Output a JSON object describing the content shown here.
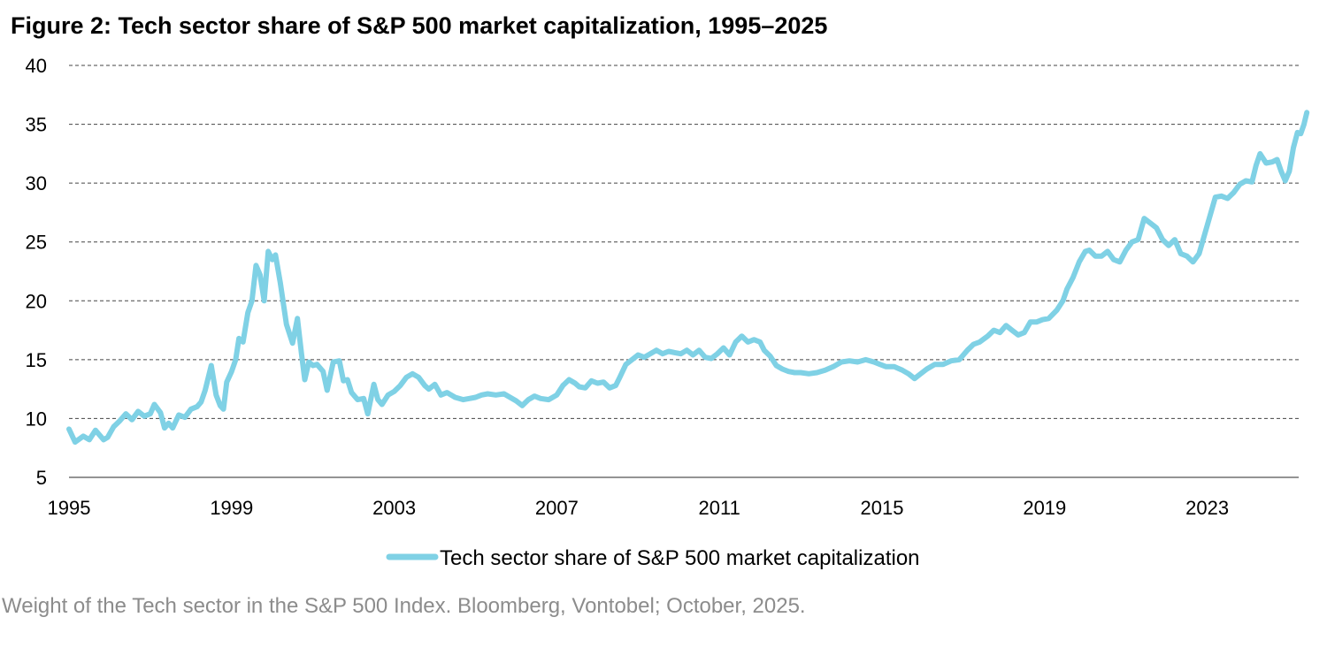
{
  "figure_title": "Figure 2: Tech sector share of S&P 500 market capitalization, 1995–2025",
  "caption": "Weight of the Tech sector in the S&P 500 Index. Bloomberg, Vontobel; October, 2025.",
  "chart_data": {
    "type": "line",
    "title": "Figure 2: Tech sector share of S&P 500 market capitalization, 1995–2025",
    "xlabel": "",
    "ylabel": "",
    "xlim": [
      1995.0,
      2025.25
    ],
    "ylim": [
      5,
      40
    ],
    "x_ticks": [
      1995,
      1999,
      2003,
      2007,
      2011,
      2015,
      2019,
      2023
    ],
    "y_ticks": [
      5,
      10,
      15,
      20,
      25,
      30,
      35,
      40
    ],
    "grid": "horizontal dashed",
    "legend_position": "bottom-center",
    "series": [
      {
        "name": "Tech sector share of S&P 500 market capitalization",
        "color": "#7fd1e5",
        "points": [
          [
            1995.0,
            9.1
          ],
          [
            1995.15,
            8.0
          ],
          [
            1995.35,
            8.5
          ],
          [
            1995.5,
            8.2
          ],
          [
            1995.65,
            9.0
          ],
          [
            1995.85,
            8.2
          ],
          [
            1995.95,
            8.4
          ],
          [
            1996.1,
            9.3
          ],
          [
            1996.25,
            9.8
          ],
          [
            1996.4,
            10.4
          ],
          [
            1996.55,
            9.9
          ],
          [
            1996.7,
            10.6
          ],
          [
            1996.85,
            10.2
          ],
          [
            1997.0,
            10.4
          ],
          [
            1997.1,
            11.2
          ],
          [
            1997.25,
            10.5
          ],
          [
            1997.35,
            9.2
          ],
          [
            1997.45,
            9.6
          ],
          [
            1997.55,
            9.2
          ],
          [
            1997.7,
            10.3
          ],
          [
            1997.85,
            10.1
          ],
          [
            1998.0,
            10.8
          ],
          [
            1998.15,
            11.0
          ],
          [
            1998.25,
            11.4
          ],
          [
            1998.35,
            12.4
          ],
          [
            1998.5,
            14.5
          ],
          [
            1998.62,
            12.0
          ],
          [
            1998.72,
            11.1
          ],
          [
            1998.8,
            10.8
          ],
          [
            1998.88,
            13.1
          ],
          [
            1999.0,
            14.0
          ],
          [
            1999.1,
            15.0
          ],
          [
            1999.18,
            16.8
          ],
          [
            1999.28,
            16.5
          ],
          [
            1999.4,
            19.0
          ],
          [
            1999.5,
            20.0
          ],
          [
            1999.6,
            23.0
          ],
          [
            1999.7,
            22.2
          ],
          [
            1999.8,
            20.0
          ],
          [
            1999.9,
            24.2
          ],
          [
            2000.0,
            23.5
          ],
          [
            2000.08,
            23.9
          ],
          [
            2000.2,
            21.5
          ],
          [
            2000.35,
            18.0
          ],
          [
            2000.5,
            16.4
          ],
          [
            2000.62,
            18.5
          ],
          [
            2000.72,
            15.5
          ],
          [
            2000.8,
            13.3
          ],
          [
            2000.9,
            14.8
          ],
          [
            2001.0,
            14.5
          ],
          [
            2001.1,
            14.6
          ],
          [
            2001.25,
            14.0
          ],
          [
            2001.35,
            12.4
          ],
          [
            2001.5,
            14.8
          ],
          [
            2001.65,
            14.9
          ],
          [
            2001.75,
            13.2
          ],
          [
            2001.85,
            13.3
          ],
          [
            2001.95,
            12.2
          ],
          [
            2002.1,
            11.6
          ],
          [
            2002.25,
            11.7
          ],
          [
            2002.35,
            10.4
          ],
          [
            2002.5,
            12.9
          ],
          [
            2002.6,
            11.6
          ],
          [
            2002.7,
            11.2
          ],
          [
            2002.85,
            12.0
          ],
          [
            2003.0,
            12.3
          ],
          [
            2003.15,
            12.8
          ],
          [
            2003.3,
            13.5
          ],
          [
            2003.45,
            13.8
          ],
          [
            2003.6,
            13.5
          ],
          [
            2003.75,
            12.8
          ],
          [
            2003.85,
            12.5
          ],
          [
            2004.0,
            12.9
          ],
          [
            2004.15,
            12.0
          ],
          [
            2004.3,
            12.2
          ],
          [
            2004.5,
            11.8
          ],
          [
            2004.7,
            11.6
          ],
          [
            2004.85,
            11.7
          ],
          [
            2005.0,
            11.8
          ],
          [
            2005.15,
            12.0
          ],
          [
            2005.3,
            12.1
          ],
          [
            2005.5,
            12.0
          ],
          [
            2005.7,
            12.1
          ],
          [
            2005.85,
            11.8
          ],
          [
            2006.0,
            11.5
          ],
          [
            2006.15,
            11.1
          ],
          [
            2006.3,
            11.6
          ],
          [
            2006.45,
            11.9
          ],
          [
            2006.6,
            11.7
          ],
          [
            2006.8,
            11.6
          ],
          [
            2007.0,
            12.0
          ],
          [
            2007.15,
            12.8
          ],
          [
            2007.3,
            13.3
          ],
          [
            2007.45,
            13.0
          ],
          [
            2007.55,
            12.7
          ],
          [
            2007.7,
            12.6
          ],
          [
            2007.85,
            13.2
          ],
          [
            2008.0,
            13.0
          ],
          [
            2008.15,
            13.1
          ],
          [
            2008.3,
            12.6
          ],
          [
            2008.45,
            12.8
          ],
          [
            2008.55,
            13.5
          ],
          [
            2008.7,
            14.6
          ],
          [
            2008.85,
            15.0
          ],
          [
            2009.0,
            15.4
          ],
          [
            2009.15,
            15.2
          ],
          [
            2009.3,
            15.5
          ],
          [
            2009.45,
            15.8
          ],
          [
            2009.6,
            15.5
          ],
          [
            2009.75,
            15.7
          ],
          [
            2009.9,
            15.6
          ],
          [
            2010.05,
            15.5
          ],
          [
            2010.2,
            15.8
          ],
          [
            2010.35,
            15.4
          ],
          [
            2010.5,
            15.8
          ],
          [
            2010.65,
            15.2
          ],
          [
            2010.8,
            15.1
          ],
          [
            2010.95,
            15.5
          ],
          [
            2011.1,
            16.0
          ],
          [
            2011.25,
            15.4
          ],
          [
            2011.4,
            16.5
          ],
          [
            2011.55,
            17.0
          ],
          [
            2011.7,
            16.5
          ],
          [
            2011.85,
            16.7
          ],
          [
            2012.0,
            16.5
          ],
          [
            2012.1,
            15.8
          ],
          [
            2012.25,
            15.3
          ],
          [
            2012.4,
            14.5
          ],
          [
            2012.55,
            14.2
          ],
          [
            2012.7,
            14.0
          ],
          [
            2012.85,
            13.9
          ],
          [
            2013.0,
            13.9
          ],
          [
            2013.2,
            13.8
          ],
          [
            2013.4,
            13.9
          ],
          [
            2013.6,
            14.1
          ],
          [
            2013.8,
            14.4
          ],
          [
            2014.0,
            14.8
          ],
          [
            2014.2,
            14.9
          ],
          [
            2014.4,
            14.8
          ],
          [
            2014.6,
            15.0
          ],
          [
            2014.8,
            14.8
          ],
          [
            2014.95,
            14.6
          ],
          [
            2015.1,
            14.4
          ],
          [
            2015.3,
            14.4
          ],
          [
            2015.5,
            14.1
          ],
          [
            2015.65,
            13.8
          ],
          [
            2015.8,
            13.4
          ],
          [
            2015.95,
            13.8
          ],
          [
            2016.1,
            14.2
          ],
          [
            2016.3,
            14.6
          ],
          [
            2016.5,
            14.6
          ],
          [
            2016.7,
            14.9
          ],
          [
            2016.9,
            15.0
          ],
          [
            2017.1,
            15.8
          ],
          [
            2017.25,
            16.3
          ],
          [
            2017.4,
            16.5
          ],
          [
            2017.6,
            17.0
          ],
          [
            2017.75,
            17.5
          ],
          [
            2017.9,
            17.3
          ],
          [
            2018.05,
            17.9
          ],
          [
            2018.2,
            17.5
          ],
          [
            2018.35,
            17.1
          ],
          [
            2018.5,
            17.3
          ],
          [
            2018.65,
            18.2
          ],
          [
            2018.8,
            18.2
          ],
          [
            2018.95,
            18.4
          ],
          [
            2019.1,
            18.5
          ],
          [
            2019.3,
            19.2
          ],
          [
            2019.45,
            20.0
          ],
          [
            2019.55,
            21.0
          ],
          [
            2019.7,
            22.0
          ],
          [
            2019.85,
            23.3
          ],
          [
            2020.0,
            24.2
          ],
          [
            2020.1,
            24.3
          ],
          [
            2020.25,
            23.8
          ],
          [
            2020.4,
            23.8
          ],
          [
            2020.55,
            24.2
          ],
          [
            2020.7,
            23.5
          ],
          [
            2020.85,
            23.3
          ],
          [
            2021.0,
            24.3
          ],
          [
            2021.15,
            25.0
          ],
          [
            2021.3,
            25.2
          ],
          [
            2021.45,
            27.0
          ],
          [
            2021.6,
            26.6
          ],
          [
            2021.75,
            26.2
          ],
          [
            2021.9,
            25.2
          ],
          [
            2022.05,
            24.7
          ],
          [
            2022.2,
            25.2
          ],
          [
            2022.35,
            24.0
          ],
          [
            2022.5,
            23.8
          ],
          [
            2022.65,
            23.3
          ],
          [
            2022.8,
            24.0
          ],
          [
            2022.95,
            25.8
          ],
          [
            2023.05,
            27.0
          ],
          [
            2023.2,
            28.8
          ],
          [
            2023.35,
            28.9
          ],
          [
            2023.5,
            28.7
          ],
          [
            2023.65,
            29.2
          ],
          [
            2023.8,
            29.9
          ],
          [
            2023.95,
            30.2
          ],
          [
            2024.1,
            30.1
          ],
          [
            2024.2,
            31.5
          ],
          [
            2024.3,
            32.5
          ],
          [
            2024.45,
            31.7
          ],
          [
            2024.6,
            31.8
          ],
          [
            2024.72,
            32.0
          ],
          [
            2024.82,
            31.0
          ],
          [
            2024.92,
            30.2
          ],
          [
            2025.02,
            31.0
          ],
          [
            2025.12,
            33.0
          ],
          [
            2025.22,
            34.3
          ],
          [
            2025.3,
            34.2
          ],
          [
            2025.38,
            35.0
          ],
          [
            2025.45,
            36.0
          ]
        ]
      }
    ]
  }
}
